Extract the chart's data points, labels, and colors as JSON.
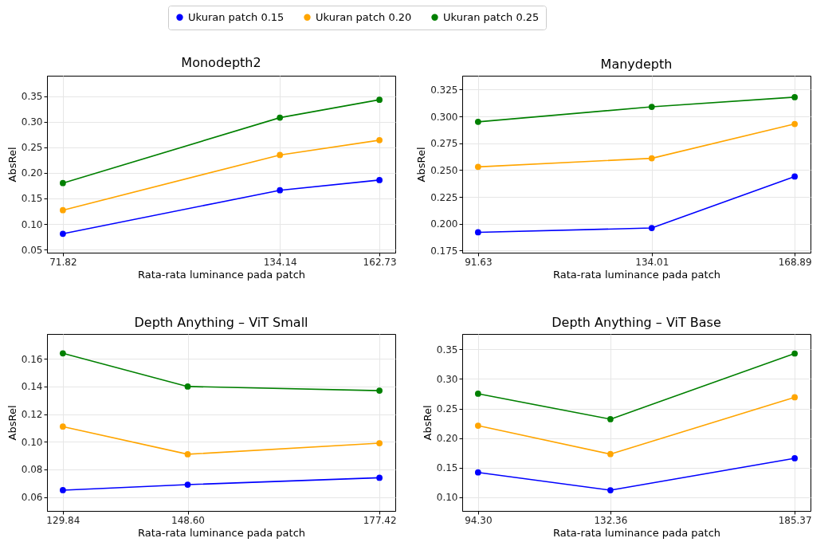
{
  "chart_data": [
    {
      "type": "line",
      "title": "Monodepth2",
      "xlabel": "Rata-rata luminance pada patch",
      "ylabel": "AbsRel",
      "x": [
        71.82,
        134.14,
        162.73
      ],
      "xlim": [
        67.27,
        167.28
      ],
      "xticks": [
        71.82,
        134.14,
        162.73
      ],
      "ylim": [
        0.044,
        0.39
      ],
      "yticks": [
        0.05,
        {
          "value": 0.1,
          "label": "0.10"
        },
        0.15,
        {
          "value": 0.2,
          "label": "0.20"
        },
        0.25,
        {
          "value": 0.3,
          "label": "0.30"
        },
        0.35
      ],
      "grid": true,
      "legend": "top",
      "marker": "circle",
      "line_style": "solid",
      "series": [
        {
          "name": "Ukuran patch 0.15",
          "color": "#0000ff",
          "values": [
            0.081,
            0.166,
            0.186
          ]
        },
        {
          "name": "Ukuran patch 0.20",
          "color": "#ffa500",
          "values": [
            0.127,
            0.235,
            0.264
          ]
        },
        {
          "name": "Ukuran patch 0.25",
          "color": "#008000",
          "values": [
            0.18,
            0.308,
            0.343
          ]
        }
      ]
    },
    {
      "type": "line",
      "title": "Manydepth",
      "xlabel": "Rata-rata luminance pada patch",
      "ylabel": "AbsRel",
      "x": [
        91.63,
        134.01,
        168.89
      ],
      "xlim": [
        87.77,
        172.75
      ],
      "xticks": [
        91.63,
        134.01,
        168.89
      ],
      "ylim": [
        0.173,
        0.338
      ],
      "yticks": [
        0.175,
        {
          "value": 0.2,
          "label": "0.200"
        },
        0.225,
        {
          "value": 0.25,
          "label": "0.250"
        },
        0.275,
        {
          "value": 0.3,
          "label": "0.300"
        },
        0.325
      ],
      "grid": true,
      "marker": "circle",
      "line_style": "solid",
      "series": [
        {
          "color": "#0000ff",
          "values": [
            0.192,
            0.196,
            0.244
          ]
        },
        {
          "color": "#ffa500",
          "values": [
            0.253,
            0.261,
            0.293
          ]
        },
        {
          "color": "#008000",
          "values": [
            0.295,
            0.309,
            0.318
          ]
        }
      ]
    },
    {
      "type": "line",
      "title": "Depth Anything – ViT Small",
      "xlabel": "Rata-rata luminance pada patch",
      "ylabel": "AbsRel",
      "x": [
        129.84,
        148.6,
        177.42
      ],
      "xlim": [
        127.46,
        179.8
      ],
      "xticks": [
        129.84,
        {
          "value": 148.6,
          "label": "148.60"
        },
        177.42
      ],
      "ylim": [
        0.05,
        0.178
      ],
      "yticks": [
        0.06,
        0.08,
        {
          "value": 0.1,
          "label": "0.10"
        },
        0.12,
        0.14,
        0.16
      ],
      "grid": true,
      "marker": "circle",
      "line_style": "solid",
      "series": [
        {
          "color": "#0000ff",
          "values": [
            0.065,
            0.069,
            0.074
          ]
        },
        {
          "color": "#ffa500",
          "values": [
            0.111,
            0.091,
            0.099
          ]
        },
        {
          "color": "#008000",
          "values": [
            0.164,
            0.14,
            0.137
          ]
        }
      ]
    },
    {
      "type": "line",
      "title": "Depth Anything – ViT Base",
      "xlabel": "Rata-rata luminance pada patch",
      "ylabel": "AbsRel",
      "x": [
        94.3,
        132.36,
        185.37
      ],
      "xlim": [
        89.75,
        189.92
      ],
      "xticks": [
        {
          "value": 94.3,
          "label": "94.30"
        },
        132.36,
        185.37
      ],
      "ylim": [
        0.077,
        0.376
      ],
      "yticks": [
        {
          "value": 0.1,
          "label": "0.10"
        },
        0.15,
        {
          "value": 0.2,
          "label": "0.20"
        },
        0.25,
        {
          "value": 0.3,
          "label": "0.30"
        },
        0.35
      ],
      "grid": true,
      "marker": "circle",
      "line_style": "solid",
      "series": [
        {
          "color": "#0000ff",
          "values": [
            0.142,
            0.112,
            0.166
          ]
        },
        {
          "color": "#ffa500",
          "values": [
            0.221,
            0.173,
            0.269
          ]
        },
        {
          "color": "#008000",
          "values": [
            0.275,
            0.232,
            0.343
          ]
        }
      ]
    }
  ]
}
